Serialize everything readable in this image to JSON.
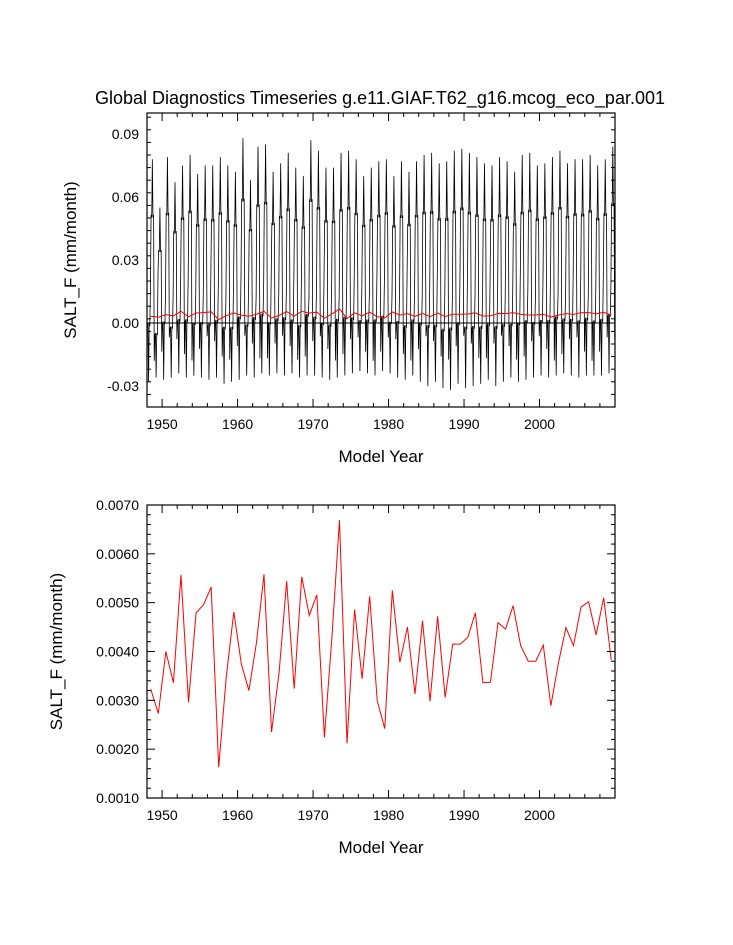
{
  "title": "Global Diagnostics Timeseries g.e11.GIAF.T62_g16.mcog_eco_par.001",
  "chart_data": [
    {
      "type": "line",
      "xlabel": "Model Year",
      "ylabel": "SALT_F (mm/month)",
      "xlim": [
        1948,
        2010
      ],
      "ylim": [
        -0.04,
        0.1
      ],
      "xticks": [
        1950,
        1960,
        1970,
        1980,
        1990,
        2000
      ],
      "xtick_labels": [
        "1950",
        "1960",
        "1970",
        "1980",
        "1990",
        "2000"
      ],
      "yticks": [
        -0.03,
        0.0,
        0.03,
        0.06,
        0.09
      ],
      "ytick_labels": [
        "-0.03",
        "0.00",
        "0.03",
        "0.06",
        "0.09"
      ],
      "reference_line": 0.0,
      "series": [
        {
          "kind": "monthly",
          "color": "#000000",
          "x_start": 1948,
          "annual_peak": [
            0.078,
            0.055,
            0.079,
            0.067,
            0.075,
            0.08,
            0.071,
            0.075,
            0.075,
            0.079,
            0.075,
            0.072,
            0.088,
            0.068,
            0.084,
            0.085,
            0.072,
            0.076,
            0.081,
            0.074,
            0.07,
            0.087,
            0.082,
            0.074,
            0.074,
            0.081,
            0.082,
            0.078,
            0.07,
            0.074,
            0.077,
            0.078,
            0.07,
            0.077,
            0.072,
            0.077,
            0.08,
            0.081,
            0.076,
            0.077,
            0.082,
            0.083,
            0.081,
            0.079,
            0.076,
            0.075,
            0.079,
            0.077,
            0.072,
            0.08,
            0.081,
            0.075,
            0.076,
            0.079,
            0.082,
            0.076,
            0.078,
            0.078,
            0.08,
            0.075,
            0.078,
            0.084
          ],
          "annual_trough": [
            -0.028,
            -0.026,
            -0.027,
            -0.026,
            -0.024,
            -0.026,
            -0.025,
            -0.026,
            -0.027,
            -0.026,
            -0.029,
            -0.028,
            -0.027,
            -0.025,
            -0.026,
            -0.024,
            -0.025,
            -0.024,
            -0.025,
            -0.024,
            -0.026,
            -0.025,
            -0.025,
            -0.026,
            -0.027,
            -0.026,
            -0.025,
            -0.024,
            -0.023,
            -0.024,
            -0.025,
            -0.023,
            -0.024,
            -0.026,
            -0.027,
            -0.025,
            -0.028,
            -0.03,
            -0.028,
            -0.031,
            -0.032,
            -0.029,
            -0.031,
            -0.03,
            -0.029,
            -0.027,
            -0.03,
            -0.028,
            -0.026,
            -0.028,
            -0.027,
            -0.026,
            -0.025,
            -0.026,
            -0.025,
            -0.024,
            -0.025,
            -0.026,
            -0.025,
            -0.025,
            -0.025,
            -0.024
          ]
        },
        {
          "kind": "annual_mean",
          "color": "#ff0000",
          "x_start": 1948.5
        }
      ]
    },
    {
      "type": "line",
      "xlabel": "Model Year",
      "ylabel": "SALT_F (mm/month)",
      "xlim": [
        1948,
        2010
      ],
      "ylim": [
        0.001,
        0.007
      ],
      "xticks": [
        1950,
        1960,
        1970,
        1980,
        1990,
        2000
      ],
      "xtick_labels": [
        "1950",
        "1960",
        "1970",
        "1980",
        "1990",
        "2000"
      ],
      "yticks": [
        0.001,
        0.002,
        0.003,
        0.004,
        0.005,
        0.006,
        0.007
      ],
      "ytick_labels": [
        "0.0010",
        "0.0020",
        "0.0030",
        "0.0040",
        "0.0050",
        "0.0060",
        "0.0070"
      ],
      "series": [
        {
          "color": "#ff0000",
          "x_start": 1948.5,
          "values": [
            0.00323,
            0.00273,
            0.004,
            0.00336,
            0.00557,
            0.00296,
            0.00479,
            0.00496,
            0.00532,
            0.00163,
            0.00348,
            0.00481,
            0.00374,
            0.0032,
            0.00418,
            0.00558,
            0.00235,
            0.00357,
            0.00544,
            0.00324,
            0.00553,
            0.00474,
            0.00516,
            0.00224,
            0.0043,
            0.00669,
            0.00212,
            0.00486,
            0.00344,
            0.00513,
            0.00299,
            0.00242,
            0.00525,
            0.00378,
            0.0045,
            0.00313,
            0.00463,
            0.00298,
            0.00472,
            0.00306,
            0.00415,
            0.00415,
            0.00429,
            0.00479,
            0.00336,
            0.00337,
            0.00459,
            0.00446,
            0.00494,
            0.00412,
            0.0038,
            0.0038,
            0.00413,
            0.00289,
            0.00376,
            0.00449,
            0.00412,
            0.00491,
            0.00502,
            0.00434,
            0.0051,
            0.00383
          ]
        }
      ]
    }
  ]
}
